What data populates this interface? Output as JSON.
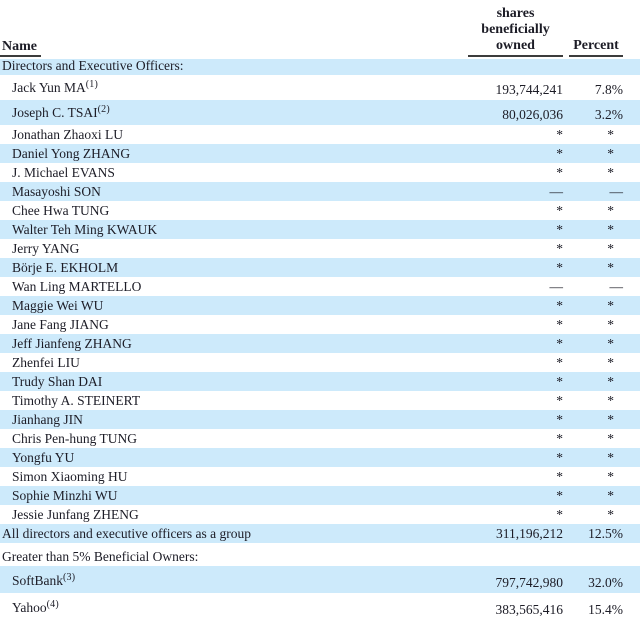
{
  "table": {
    "columns": {
      "name": "Name",
      "shares": "shares beneficially owned",
      "percent": "Percent"
    },
    "colors": {
      "stripe": "#cdeafb",
      "text": "#1c1c26",
      "rule": "#3c3c3c"
    },
    "rows": [
      {
        "name": "Directors and Executive Officers:",
        "section": true,
        "shares": "",
        "percent": ""
      },
      {
        "name": "Jack Yun MA",
        "sup": "(1)",
        "shares": "193,744,241",
        "percent": "7.8%"
      },
      {
        "name": "Joseph C. TSAI",
        "sup": "(2)",
        "shares": "80,026,036",
        "percent": "3.2%"
      },
      {
        "name": "Jonathan Zhaoxi LU",
        "shares": "*",
        "percent": "*"
      },
      {
        "name": "Daniel Yong ZHANG",
        "shares": "*",
        "percent": "*"
      },
      {
        "name": "J. Michael EVANS",
        "shares": "*",
        "percent": "*"
      },
      {
        "name": "Masayoshi SON",
        "shares": "—",
        "percent": "—"
      },
      {
        "name": "Chee Hwa TUNG",
        "shares": "*",
        "percent": "*"
      },
      {
        "name": "Walter Teh Ming KWAUK",
        "shares": "*",
        "percent": "*"
      },
      {
        "name": "Jerry YANG",
        "shares": "*",
        "percent": "*"
      },
      {
        "name": "Börje E. EKHOLM",
        "shares": "*",
        "percent": "*"
      },
      {
        "name": "Wan Ling MARTELLO",
        "shares": "—",
        "percent": "—"
      },
      {
        "name": "Maggie Wei WU",
        "shares": "*",
        "percent": "*"
      },
      {
        "name": "Jane Fang JIANG",
        "shares": "*",
        "percent": "*"
      },
      {
        "name": "Jeff Jianfeng ZHANG",
        "shares": "*",
        "percent": "*"
      },
      {
        "name": "Zhenfei LIU",
        "shares": "*",
        "percent": "*"
      },
      {
        "name": "Trudy Shan DAI",
        "shares": "*",
        "percent": "*"
      },
      {
        "name": "Timothy A. STEINERT",
        "shares": "*",
        "percent": "*"
      },
      {
        "name": "Jianhang JIN",
        "shares": "*",
        "percent": "*"
      },
      {
        "name": "Chris Pen-hung TUNG",
        "shares": "*",
        "percent": "*"
      },
      {
        "name": "Yongfu YU",
        "shares": "*",
        "percent": "*"
      },
      {
        "name": "Simon Xiaoming HU",
        "shares": "*",
        "percent": "*"
      },
      {
        "name": "Sophie Minzhi WU",
        "shares": "*",
        "percent": "*"
      },
      {
        "name": "Jessie Junfang ZHENG",
        "shares": "*",
        "percent": "*"
      },
      {
        "name": "All directors and executive officers as a group",
        "section": true,
        "shares": "311,196,212",
        "percent": "12.5%"
      },
      {
        "name": "Greater than 5% Beneficial Owners:",
        "section": true,
        "shares": "",
        "percent": ""
      },
      {
        "name": "SoftBank",
        "sup": "(3)",
        "shares": "797,742,980",
        "percent": "32.0%"
      },
      {
        "name": "Yahoo",
        "sup": "(4)",
        "shares": "383,565,416",
        "percent": "15.4%"
      }
    ]
  }
}
